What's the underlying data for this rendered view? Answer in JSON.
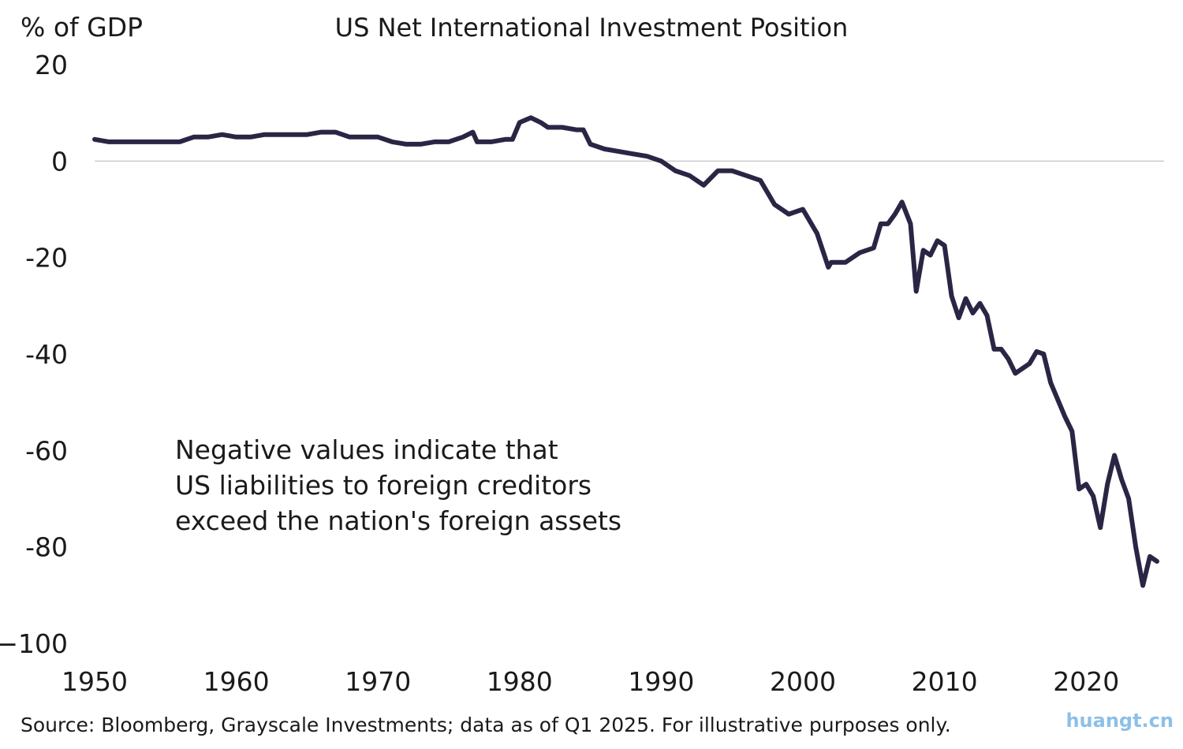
{
  "chart_data": {
    "type": "line",
    "title": "US Net International Investment Position",
    "ylabel": "% of GDP",
    "xlabel": "",
    "xlim": [
      1950,
      2025.5
    ],
    "ylim": [
      -100,
      20
    ],
    "x_ticks": [
      1950,
      1960,
      1970,
      1980,
      1990,
      2000,
      2010,
      2020
    ],
    "y_ticks": [
      20,
      0,
      -20,
      -40,
      -60,
      -80,
      -100
    ],
    "y_tick_labels": [
      "20",
      "0",
      "-20",
      "-40",
      "-60",
      "-80",
      "−100"
    ],
    "grid": false,
    "zero_line": true,
    "series": [
      {
        "name": "US Net International Investment Position",
        "color": "#2b2545",
        "x": [
          1950,
          1951,
          1952,
          1953,
          1954,
          1955,
          1956,
          1957,
          1958,
          1959,
          1960,
          1961,
          1962,
          1963,
          1964,
          1965,
          1966,
          1967,
          1968,
          1969,
          1970,
          1971,
          1972,
          1973,
          1974,
          1975,
          1976,
          1976.7,
          1977,
          1978,
          1979,
          1979.5,
          1980,
          1980.8,
          1981.5,
          1982,
          1983,
          1984,
          1984.5,
          1985,
          1986,
          1987,
          1988,
          1989,
          1990,
          1991,
          1992,
          1993,
          1994,
          1995,
          1996,
          1997,
          1998,
          1999,
          2000,
          2001,
          2001.8,
          2002,
          2003,
          2004,
          2005,
          2005.5,
          2006,
          2006.5,
          2007,
          2007.6,
          2008,
          2008.5,
          2009,
          2009.5,
          2010,
          2010.5,
          2011,
          2011.5,
          2012,
          2012.5,
          2013,
          2013.5,
          2014,
          2014.5,
          2015,
          2015.5,
          2016,
          2016.5,
          2017,
          2017.5,
          2018,
          2018.5,
          2019,
          2019.5,
          2020,
          2020.5,
          2021,
          2021.5,
          2022,
          2022.5,
          2023,
          2023.5,
          2024,
          2024.5,
          2025
        ],
        "values": [
          4.5,
          4,
          4,
          4,
          4,
          4,
          4,
          5,
          5,
          5.5,
          5,
          5,
          5.5,
          5.5,
          5.5,
          5.5,
          6,
          6,
          5,
          5,
          5,
          4,
          3.5,
          3.5,
          4,
          4,
          5,
          6,
          4,
          4,
          4.5,
          4.5,
          8,
          9,
          8,
          7,
          7,
          6.5,
          6.5,
          3.5,
          2.5,
          2,
          1.5,
          1,
          0,
          -2,
          -3,
          -5,
          -2,
          -2,
          -3,
          -4,
          -9,
          -11,
          -10,
          -15,
          -22,
          -21,
          -21,
          -19,
          -18,
          -13,
          -13,
          -11,
          -8.5,
          -13,
          -27,
          -18.5,
          -19.5,
          -16.5,
          -17.5,
          -28,
          -32.5,
          -28.5,
          -31.5,
          -29.5,
          -32,
          -39,
          -39,
          -41,
          -44,
          -43,
          -42,
          -39.5,
          -40,
          -46,
          -49.5,
          -53,
          -56,
          -68,
          -67,
          -69.5,
          -76,
          -67,
          -61,
          -66,
          -70,
          -80,
          -88,
          -82,
          -83
        ]
      }
    ],
    "annotation": [
      "Negative values indicate that",
      "US liabilities to foreign creditors",
      "exceed the nation's foreign assets"
    ]
  },
  "source_note": "Source: Bloomberg, Grayscale Investments; data as of Q1 2025. For illustrative purposes only.",
  "watermark": "huangt.cn"
}
